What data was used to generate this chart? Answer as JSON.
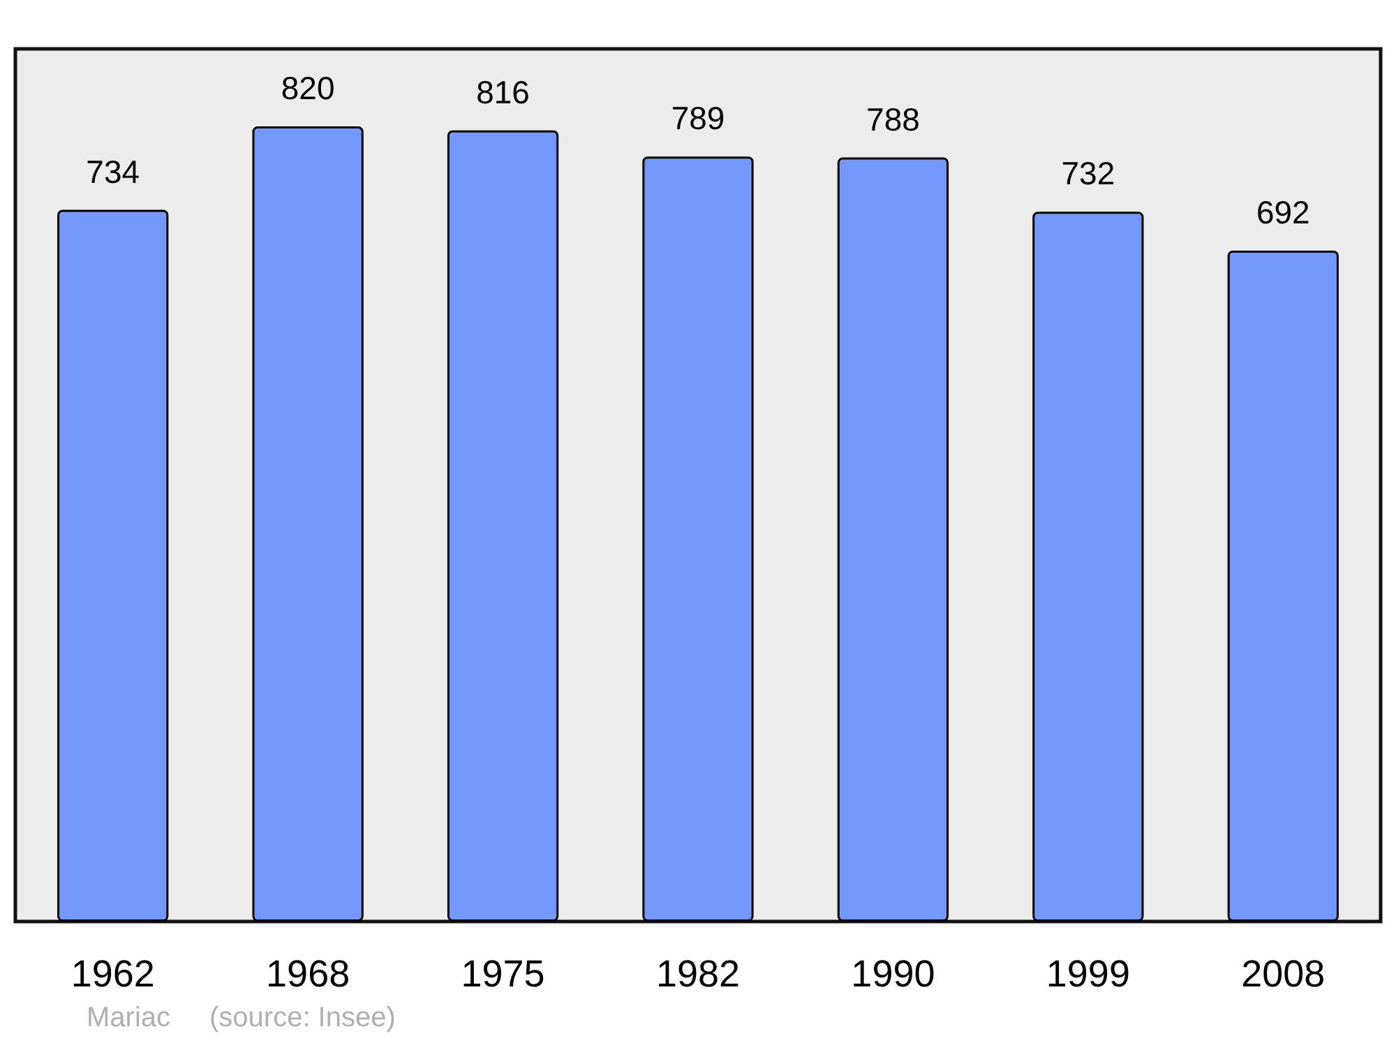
{
  "chart_data": {
    "type": "bar",
    "categories": [
      "1962",
      "1968",
      "1975",
      "1982",
      "1990",
      "1999",
      "2008"
    ],
    "values": [
      734,
      820,
      816,
      789,
      788,
      732,
      692
    ],
    "color": "#7399ff",
    "ylim": [
      0,
      900
    ],
    "data_labels": true,
    "tick_labels": "x",
    "annotations": [
      "Mariac",
      "(source: Insee)"
    ]
  }
}
